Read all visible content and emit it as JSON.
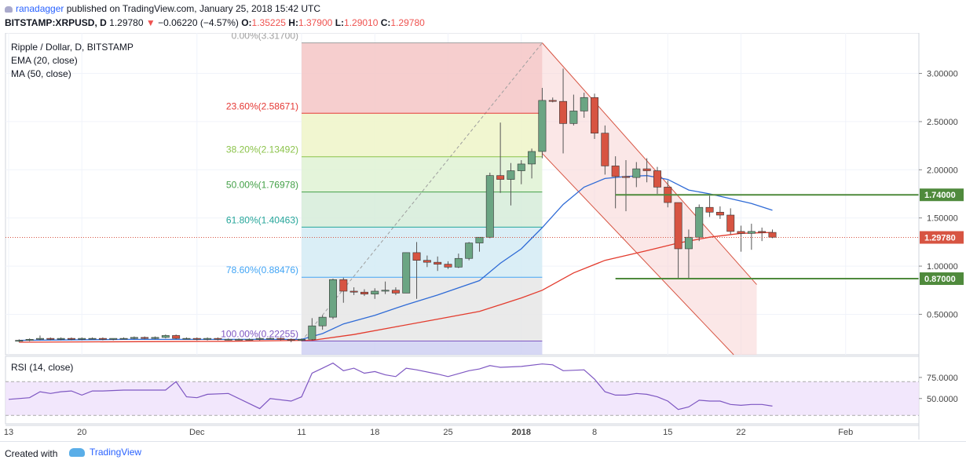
{
  "header": {
    "user": "ranadagger",
    "published": "published on TradingView.com, January 25, 2018 15:42 UTC",
    "symbol": "BITSTAMP:XRPUSD,",
    "timeframe": "D",
    "last": "1.29780",
    "change": "−0.06220 (−4.57%)",
    "open_label": "O:",
    "open": "1.35225",
    "high_label": "H:",
    "high": "1.37900",
    "low_label": "L:",
    "low": "1.29010",
    "close_label": "C:",
    "close": "1.29780"
  },
  "legend": {
    "title": "Ripple / Dollar, D, BITSTAMP",
    "ema": "EMA (20, close)",
    "ma": "MA (50, close)"
  },
  "footer": {
    "created": "Created with",
    "brand": "TradingView"
  },
  "colors": {
    "up": "#6ba583",
    "down": "#d75442",
    "ema": "#2f6bd6",
    "ma": "#e33b2d",
    "level": "#4f8a3c",
    "rsi": "#7e57c2"
  },
  "chart_data": {
    "type": "candlestick",
    "y_ticks": [
      "0.50000",
      "1.00000",
      "1.50000",
      "2.00000",
      "2.50000",
      "3.00000"
    ],
    "x_ticks": [
      {
        "d": -1,
        "label": "13"
      },
      {
        "d": 6,
        "label": "20"
      },
      {
        "d": 17,
        "label": "Dec"
      },
      {
        "d": 27,
        "label": "11"
      },
      {
        "d": 34,
        "label": "18"
      },
      {
        "d": 41,
        "label": "25"
      },
      {
        "d": 48,
        "label": "2018"
      },
      {
        "d": 55,
        "label": "8"
      },
      {
        "d": 62,
        "label": "15"
      },
      {
        "d": 69,
        "label": "22"
      },
      {
        "d": 79,
        "label": "Feb"
      }
    ],
    "ylim": [
      0.08,
      3.42
    ],
    "xlim": [
      -1.3,
      86
    ],
    "candles": [
      {
        "d": 0,
        "o": 0.22,
        "h": 0.24,
        "l": 0.21,
        "c": 0.23
      },
      {
        "d": 1,
        "o": 0.23,
        "h": 0.25,
        "l": 0.22,
        "c": 0.24
      },
      {
        "d": 2,
        "o": 0.24,
        "h": 0.28,
        "l": 0.23,
        "c": 0.25
      },
      {
        "d": 3,
        "o": 0.25,
        "h": 0.26,
        "l": 0.23,
        "c": 0.24
      },
      {
        "d": 4,
        "o": 0.24,
        "h": 0.26,
        "l": 0.23,
        "c": 0.25
      },
      {
        "d": 5,
        "o": 0.25,
        "h": 0.26,
        "l": 0.23,
        "c": 0.24
      },
      {
        "d": 6,
        "o": 0.24,
        "h": 0.26,
        "l": 0.23,
        "c": 0.25
      },
      {
        "d": 7,
        "o": 0.25,
        "h": 0.26,
        "l": 0.24,
        "c": 0.25
      },
      {
        "d": 8,
        "o": 0.25,
        "h": 0.26,
        "l": 0.23,
        "c": 0.24
      },
      {
        "d": 9,
        "o": 0.24,
        "h": 0.25,
        "l": 0.23,
        "c": 0.25
      },
      {
        "d": 10,
        "o": 0.25,
        "h": 0.26,
        "l": 0.24,
        "c": 0.25
      },
      {
        "d": 11,
        "o": 0.25,
        "h": 0.27,
        "l": 0.24,
        "c": 0.26
      },
      {
        "d": 12,
        "o": 0.26,
        "h": 0.27,
        "l": 0.24,
        "c": 0.25
      },
      {
        "d": 13,
        "o": 0.25,
        "h": 0.27,
        "l": 0.24,
        "c": 0.26
      },
      {
        "d": 14,
        "o": 0.26,
        "h": 0.29,
        "l": 0.25,
        "c": 0.28
      },
      {
        "d": 15,
        "o": 0.28,
        "h": 0.29,
        "l": 0.24,
        "c": 0.25
      },
      {
        "d": 16,
        "o": 0.25,
        "h": 0.26,
        "l": 0.24,
        "c": 0.25
      },
      {
        "d": 17,
        "o": 0.25,
        "h": 0.26,
        "l": 0.23,
        "c": 0.24
      },
      {
        "d": 18,
        "o": 0.24,
        "h": 0.26,
        "l": 0.23,
        "c": 0.25
      },
      {
        "d": 19,
        "o": 0.25,
        "h": 0.26,
        "l": 0.23,
        "c": 0.24
      },
      {
        "d": 20,
        "o": 0.24,
        "h": 0.25,
        "l": 0.23,
        "c": 0.24
      },
      {
        "d": 21,
        "o": 0.24,
        "h": 0.25,
        "l": 0.23,
        "c": 0.24
      },
      {
        "d": 22,
        "o": 0.24,
        "h": 0.25,
        "l": 0.23,
        "c": 0.24
      },
      {
        "d": 23,
        "o": 0.24,
        "h": 0.26,
        "l": 0.23,
        "c": 0.25
      },
      {
        "d": 24,
        "o": 0.25,
        "h": 0.26,
        "l": 0.24,
        "c": 0.25
      },
      {
        "d": 25,
        "o": 0.25,
        "h": 0.26,
        "l": 0.23,
        "c": 0.24
      },
      {
        "d": 26,
        "o": 0.24,
        "h": 0.25,
        "l": 0.21,
        "c": 0.23
      },
      {
        "d": 27,
        "o": 0.23,
        "h": 0.25,
        "l": 0.22,
        "c": 0.24
      },
      {
        "d": 28,
        "o": 0.24,
        "h": 0.46,
        "l": 0.23,
        "c": 0.38
      },
      {
        "d": 29,
        "o": 0.38,
        "h": 0.49,
        "l": 0.34,
        "c": 0.47
      },
      {
        "d": 30,
        "o": 0.47,
        "h": 0.87,
        "l": 0.45,
        "c": 0.86
      },
      {
        "d": 31,
        "o": 0.86,
        "h": 0.88,
        "l": 0.62,
        "c": 0.74
      },
      {
        "d": 32,
        "o": 0.74,
        "h": 0.78,
        "l": 0.7,
        "c": 0.73
      },
      {
        "d": 33,
        "o": 0.73,
        "h": 0.76,
        "l": 0.69,
        "c": 0.71
      },
      {
        "d": 34,
        "o": 0.71,
        "h": 0.77,
        "l": 0.66,
        "c": 0.74
      },
      {
        "d": 35,
        "o": 0.74,
        "h": 0.84,
        "l": 0.71,
        "c": 0.75
      },
      {
        "d": 36,
        "o": 0.75,
        "h": 0.78,
        "l": 0.7,
        "c": 0.72
      },
      {
        "d": 37,
        "o": 0.72,
        "h": 1.14,
        "l": 0.72,
        "c": 1.14
      },
      {
        "d": 38,
        "o": 1.14,
        "h": 1.25,
        "l": 0.66,
        "c": 1.06
      },
      {
        "d": 39,
        "o": 1.06,
        "h": 1.11,
        "l": 0.99,
        "c": 1.04
      },
      {
        "d": 40,
        "o": 1.04,
        "h": 1.1,
        "l": 0.95,
        "c": 1.02
      },
      {
        "d": 41,
        "o": 1.02,
        "h": 1.05,
        "l": 0.97,
        "c": 0.99
      },
      {
        "d": 42,
        "o": 0.99,
        "h": 1.13,
        "l": 0.98,
        "c": 1.08
      },
      {
        "d": 43,
        "o": 1.08,
        "h": 1.25,
        "l": 1.06,
        "c": 1.24
      },
      {
        "d": 44,
        "o": 1.24,
        "h": 1.29,
        "l": 1.15,
        "c": 1.3
      },
      {
        "d": 45,
        "o": 1.3,
        "h": 1.97,
        "l": 1.29,
        "c": 1.94
      },
      {
        "d": 46,
        "o": 1.94,
        "h": 2.49,
        "l": 1.76,
        "c": 1.9
      },
      {
        "d": 47,
        "o": 1.9,
        "h": 2.07,
        "l": 1.63,
        "c": 1.99
      },
      {
        "d": 48,
        "o": 1.99,
        "h": 2.1,
        "l": 1.85,
        "c": 2.06
      },
      {
        "d": 49,
        "o": 2.06,
        "h": 2.22,
        "l": 1.91,
        "c": 2.19
      },
      {
        "d": 50,
        "o": 2.19,
        "h": 2.85,
        "l": 2.12,
        "c": 2.72
      },
      {
        "d": 51,
        "o": 2.72,
        "h": 2.75,
        "l": 2.7,
        "c": 2.71
      },
      {
        "d": 52,
        "o": 2.71,
        "h": 3.05,
        "l": 2.17,
        "c": 2.48
      },
      {
        "d": 53,
        "o": 2.48,
        "h": 2.78,
        "l": 2.46,
        "c": 2.61
      },
      {
        "d": 54,
        "o": 2.61,
        "h": 2.8,
        "l": 2.54,
        "c": 2.75
      },
      {
        "d": 55,
        "o": 2.75,
        "h": 2.79,
        "l": 2.32,
        "c": 2.38
      },
      {
        "d": 56,
        "o": 2.38,
        "h": 2.46,
        "l": 1.95,
        "c": 2.04
      },
      {
        "d": 57,
        "o": 2.04,
        "h": 2.14,
        "l": 1.6,
        "c": 1.93
      },
      {
        "d": 58,
        "o": 1.93,
        "h": 2.1,
        "l": 1.57,
        "c": 1.92
      },
      {
        "d": 59,
        "o": 1.92,
        "h": 2.08,
        "l": 1.82,
        "c": 2.01
      },
      {
        "d": 60,
        "o": 2.01,
        "h": 2.12,
        "l": 1.87,
        "c": 1.99
      },
      {
        "d": 61,
        "o": 1.99,
        "h": 2.03,
        "l": 1.75,
        "c": 1.82
      },
      {
        "d": 62,
        "o": 1.82,
        "h": 1.89,
        "l": 1.61,
        "c": 1.66
      },
      {
        "d": 63,
        "o": 1.66,
        "h": 1.66,
        "l": 0.87,
        "c": 1.18
      },
      {
        "d": 64,
        "o": 1.18,
        "h": 1.38,
        "l": 0.87,
        "c": 1.3
      },
      {
        "d": 65,
        "o": 1.3,
        "h": 1.64,
        "l": 1.26,
        "c": 1.61
      },
      {
        "d": 66,
        "o": 1.61,
        "h": 1.73,
        "l": 1.51,
        "c": 1.56
      },
      {
        "d": 67,
        "o": 1.56,
        "h": 1.62,
        "l": 1.49,
        "c": 1.53
      },
      {
        "d": 68,
        "o": 1.53,
        "h": 1.6,
        "l": 1.33,
        "c": 1.36
      },
      {
        "d": 69,
        "o": 1.36,
        "h": 1.42,
        "l": 1.15,
        "c": 1.34
      },
      {
        "d": 70,
        "o": 1.34,
        "h": 1.44,
        "l": 1.17,
        "c": 1.36
      },
      {
        "d": 71,
        "o": 1.36,
        "h": 1.4,
        "l": 1.26,
        "c": 1.35
      },
      {
        "d": 72,
        "o": 1.35,
        "h": 1.38,
        "l": 1.29,
        "c": 1.3
      }
    ],
    "ema20": [
      [
        0,
        0.23
      ],
      [
        10,
        0.24
      ],
      [
        20,
        0.24
      ],
      [
        27,
        0.24
      ],
      [
        29,
        0.3
      ],
      [
        31,
        0.4
      ],
      [
        34,
        0.49
      ],
      [
        37,
        0.6
      ],
      [
        40,
        0.7
      ],
      [
        44,
        0.85
      ],
      [
        46,
        1.03
      ],
      [
        48,
        1.18
      ],
      [
        50,
        1.4
      ],
      [
        52,
        1.64
      ],
      [
        54,
        1.82
      ],
      [
        56,
        1.91
      ],
      [
        58,
        1.93
      ],
      [
        60,
        1.94
      ],
      [
        62,
        1.9
      ],
      [
        64,
        1.79
      ],
      [
        66,
        1.75
      ],
      [
        68,
        1.7
      ],
      [
        70,
        1.65
      ],
      [
        72,
        1.58
      ]
    ],
    "ma50": [
      [
        0,
        0.21
      ],
      [
        20,
        0.22
      ],
      [
        28,
        0.23
      ],
      [
        32,
        0.29
      ],
      [
        36,
        0.37
      ],
      [
        40,
        0.45
      ],
      [
        44,
        0.53
      ],
      [
        48,
        0.67
      ],
      [
        50,
        0.75
      ],
      [
        53,
        0.93
      ],
      [
        56,
        1.06
      ],
      [
        60,
        1.16
      ],
      [
        63,
        1.24
      ],
      [
        66,
        1.3
      ],
      [
        69,
        1.34
      ],
      [
        72,
        1.35
      ]
    ],
    "fib": {
      "d_start": 27,
      "d_end": 50,
      "levels": [
        {
          "label": "0.00%(3.31700)",
          "v": 3.317,
          "color": "#9e9e9e",
          "band": "#f4c6c6"
        },
        {
          "label": "23.60%(2.58671)",
          "v": 2.58671,
          "color": "#e53935",
          "band": "#eef4c8"
        },
        {
          "label": "38.20%(2.13492)",
          "v": 2.13492,
          "color": "#8bc34a",
          "band": "#dff2d3"
        },
        {
          "label": "50.00%(1.76978)",
          "v": 1.76978,
          "color": "#43a047",
          "band": "#d6ecd9"
        },
        {
          "label": "61.80%(1.40463)",
          "v": 1.40463,
          "color": "#26a69a",
          "band": "#d4ebf4"
        },
        {
          "label": "78.60%(0.88476)",
          "v": 0.88476,
          "color": "#42a5f5",
          "band": "#e6e6e6"
        },
        {
          "label": "100.00%(0.22255)",
          "v": 0.22255,
          "color": "#7e57c2",
          "band": "#cfd0f2"
        }
      ]
    },
    "channel": {
      "upper": [
        [
          50,
          3.317
        ],
        [
          70,
          0.87
        ]
      ],
      "lower": [
        [
          50,
          2.17
        ],
        [
          69,
          0.0
        ]
      ],
      "fill_end": 70.5
    },
    "levels": [
      {
        "v": 1.74,
        "label": "1.74000",
        "d_start": 57
      },
      {
        "v": 0.87,
        "label": "0.87000",
        "d_start": 57
      }
    ],
    "last_price": {
      "v": 1.2978,
      "label": "1.29780"
    },
    "rsi": {
      "label": "RSI (14, close)",
      "ticks": [
        "75.0000",
        "50.0000"
      ],
      "ylim": [
        20,
        100
      ],
      "values": [
        [
          -1,
          49
        ],
        [
          1,
          51
        ],
        [
          2,
          58
        ],
        [
          3,
          56
        ],
        [
          4,
          58
        ],
        [
          5,
          59
        ],
        [
          6,
          54
        ],
        [
          7,
          59
        ],
        [
          8,
          59
        ],
        [
          10,
          60
        ],
        [
          12,
          60
        ],
        [
          14,
          60
        ],
        [
          15,
          70
        ],
        [
          16,
          52
        ],
        [
          17,
          51
        ],
        [
          18,
          55
        ],
        [
          20,
          56
        ],
        [
          22,
          44
        ],
        [
          23,
          38
        ],
        [
          24,
          50
        ],
        [
          26,
          47
        ],
        [
          27,
          52
        ],
        [
          28,
          80
        ],
        [
          29,
          86
        ],
        [
          30,
          92
        ],
        [
          31,
          83
        ],
        [
          32,
          86
        ],
        [
          33,
          80
        ],
        [
          34,
          82
        ],
        [
          35,
          78
        ],
        [
          36,
          76
        ],
        [
          37,
          86
        ],
        [
          38,
          84
        ],
        [
          40,
          79
        ],
        [
          41,
          76
        ],
        [
          43,
          83
        ],
        [
          44,
          85
        ],
        [
          45,
          89
        ],
        [
          46,
          87
        ],
        [
          48,
          88
        ],
        [
          50,
          91
        ],
        [
          51,
          90
        ],
        [
          52,
          83
        ],
        [
          54,
          84
        ],
        [
          55,
          73
        ],
        [
          56,
          58
        ],
        [
          57,
          54
        ],
        [
          58,
          54
        ],
        [
          59,
          56
        ],
        [
          60,
          55
        ],
        [
          61,
          52
        ],
        [
          62,
          47
        ],
        [
          63,
          37
        ],
        [
          64,
          40
        ],
        [
          65,
          48
        ],
        [
          66,
          47
        ],
        [
          67,
          47
        ],
        [
          68,
          43
        ],
        [
          69,
          42
        ],
        [
          70,
          43
        ],
        [
          71,
          43
        ],
        [
          72,
          41
        ]
      ]
    }
  }
}
